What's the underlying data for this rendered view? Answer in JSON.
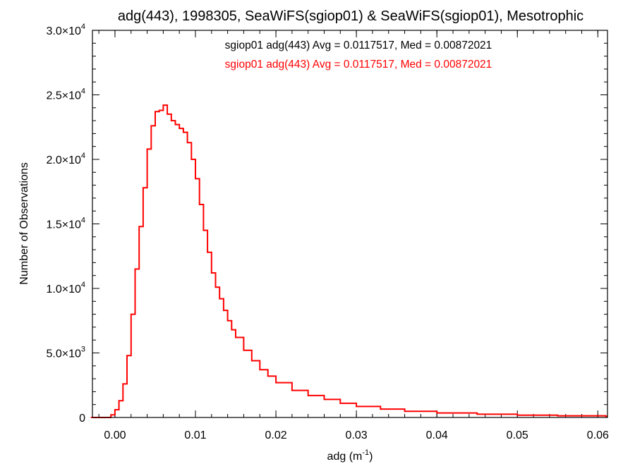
{
  "chart_data": {
    "type": "line",
    "title": "adg(443), 1998305, SeaWiFS(sgiop01) & SeaWiFS(sgiop01), Mesotrophic",
    "xlabel_base": "adg (m",
    "xlabel_exp": "-1",
    "xlabel_close": ")",
    "ylabel": "Number of Observations",
    "xlim": [
      -0.0028,
      0.0612
    ],
    "ylim": [
      0,
      30000
    ],
    "grid": false,
    "x_ticks": [
      {
        "value": 0.0,
        "label": "0.00"
      },
      {
        "value": 0.01,
        "label": "0.01"
      },
      {
        "value": 0.02,
        "label": "0.02"
      },
      {
        "value": 0.03,
        "label": "0.03"
      },
      {
        "value": 0.04,
        "label": "0.04"
      },
      {
        "value": 0.05,
        "label": "0.05"
      },
      {
        "value": 0.06,
        "label": "0.06"
      }
    ],
    "x_minor_step": 0.002,
    "y_ticks": [
      {
        "value": 0,
        "mant": "0",
        "exp": ""
      },
      {
        "value": 5000,
        "mant": "5.0×10",
        "exp": "3"
      },
      {
        "value": 10000,
        "mant": "1.0×10",
        "exp": "4"
      },
      {
        "value": 15000,
        "mant": "1.5×10",
        "exp": "4"
      },
      {
        "value": 20000,
        "mant": "2.0×10",
        "exp": "4"
      },
      {
        "value": 25000,
        "mant": "2.5×10",
        "exp": "4"
      },
      {
        "value": 30000,
        "mant": "3.0×10",
        "exp": "4"
      }
    ],
    "y_minor_step": 1000,
    "annotations": [
      {
        "text": "sgiop01 adg(443) Avg = 0.0117517, Med = 0.00872021",
        "color": "#000000"
      },
      {
        "text": "sgiop01 adg(443) Avg = 0.0117517, Med = 0.00872021",
        "color": "#ff0000"
      }
    ],
    "series": [
      {
        "color": "#ff0000",
        "style": "step",
        "x": [
          -0.003,
          -0.0005,
          0.0,
          0.0005,
          0.001,
          0.0015,
          0.002,
          0.0025,
          0.003,
          0.0035,
          0.004,
          0.0045,
          0.005,
          0.0055,
          0.006,
          0.0065,
          0.007,
          0.0075,
          0.008,
          0.0085,
          0.009,
          0.0095,
          0.01,
          0.0105,
          0.011,
          0.0115,
          0.012,
          0.0125,
          0.013,
          0.0135,
          0.014,
          0.0145,
          0.015,
          0.016,
          0.017,
          0.018,
          0.019,
          0.02,
          0.022,
          0.024,
          0.026,
          0.028,
          0.03,
          0.033,
          0.036,
          0.04,
          0.045,
          0.05,
          0.055,
          0.061
        ],
        "y": [
          0,
          200,
          600,
          1300,
          2600,
          4800,
          8000,
          11500,
          14800,
          17800,
          20800,
          22600,
          23700,
          23800,
          24200,
          23500,
          23000,
          22700,
          22400,
          22100,
          21300,
          20000,
          18500,
          16500,
          14500,
          12800,
          11200,
          10100,
          9200,
          8300,
          7500,
          6800,
          6200,
          5200,
          4400,
          3700,
          3200,
          2700,
          2100,
          1700,
          1400,
          1100,
          850,
          650,
          480,
          350,
          250,
          180,
          130,
          90
        ]
      }
    ]
  }
}
